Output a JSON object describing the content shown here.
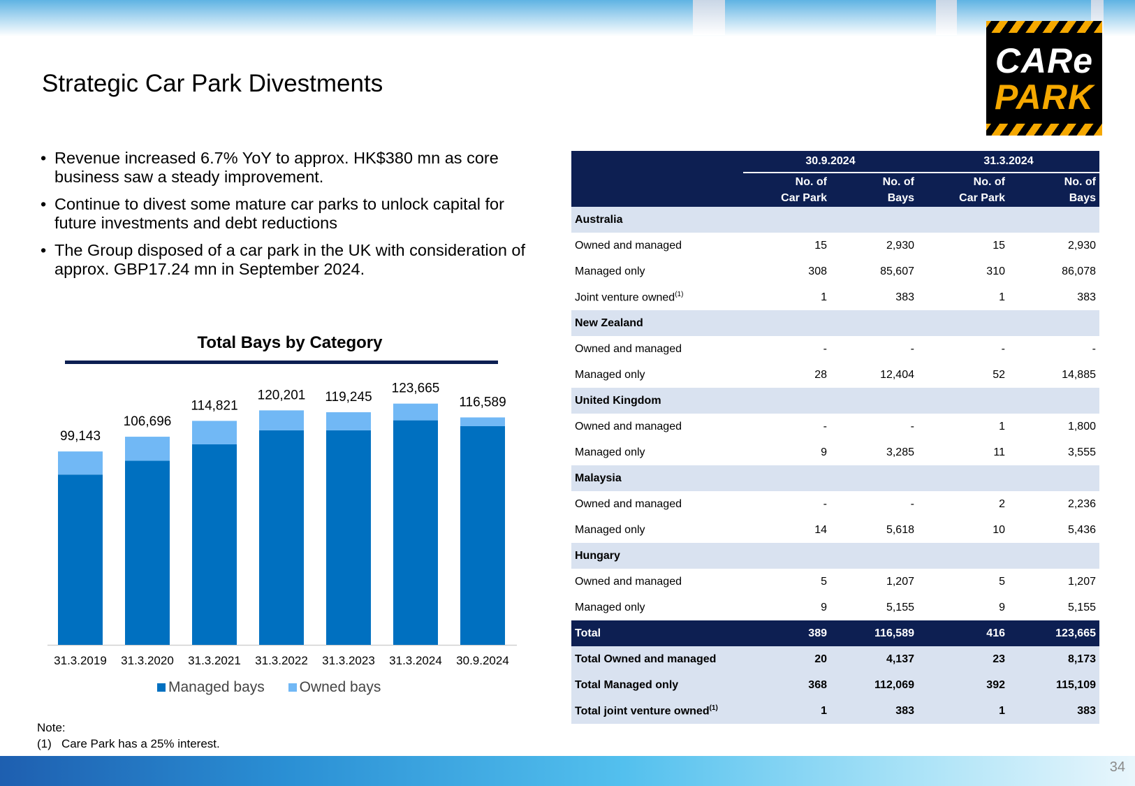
{
  "page": {
    "title": "Strategic Car Park Divestments",
    "page_number": "34",
    "logo": {
      "line1": "CARe",
      "line2": "PARK"
    },
    "bullets": [
      "Revenue increased 6.7% YoY to approx. HK$380 mn as core business saw a steady improvement.",
      "Continue to divest some mature car parks to unlock capital for future investments and debt reductions",
      "The Group disposed of a car park in the UK with consideration of approx. GBP17.24 mn in September 2024."
    ],
    "note": {
      "heading": "Note:",
      "text": "(1)   Care Park has a 25% interest."
    }
  },
  "chart_data": {
    "type": "bar",
    "stacked": true,
    "title": "Total Bays by Category",
    "categories": [
      "31.3.2019",
      "31.3.2020",
      "31.3.2021",
      "31.3.2022",
      "31.3.2023",
      "31.3.2024",
      "30.9.2024"
    ],
    "series": [
      {
        "name": "Managed bays",
        "color": "#0070c0",
        "values": [
          87300,
          94400,
          102800,
          110000,
          110000,
          115100,
          112100
        ]
      },
      {
        "name": "Owned bays",
        "color": "#71b8f5",
        "values": [
          11843,
          12296,
          12021,
          10201,
          9245,
          8565,
          4489
        ]
      }
    ],
    "totals": [
      "99,143",
      "106,696",
      "114,821",
      "120,201",
      "119,245",
      "123,665",
      "116,589"
    ],
    "ylim": [
      0,
      130000
    ],
    "legend": "bottom",
    "grid": false
  },
  "table": {
    "periods": [
      "30.9.2024",
      "31.3.2024"
    ],
    "columns": [
      {
        "line1": "No. of",
        "line2": "Car Park"
      },
      {
        "line1": "No. of",
        "line2": "Bays"
      },
      {
        "line1": "No. of",
        "line2": "Car Park"
      },
      {
        "line1": "No. of",
        "line2": "Bays"
      }
    ],
    "rows": [
      {
        "type": "region",
        "label": "Australia"
      },
      {
        "type": "data",
        "label": "Owned and managed",
        "values": [
          "15",
          "2,930",
          "15",
          "2,930"
        ]
      },
      {
        "type": "data",
        "label": "Managed only",
        "values": [
          "308",
          "85,607",
          "310",
          "86,078"
        ]
      },
      {
        "type": "data",
        "label": "Joint venture owned",
        "sup": "(1)",
        "values": [
          "1",
          "383",
          "1",
          "383"
        ]
      },
      {
        "type": "region",
        "label": "New Zealand"
      },
      {
        "type": "data",
        "label": "Owned and managed",
        "values": [
          "-",
          "-",
          "-",
          "-"
        ]
      },
      {
        "type": "data",
        "label": "Managed only",
        "values": [
          "28",
          "12,404",
          "52",
          "14,885"
        ]
      },
      {
        "type": "region",
        "label": "United Kingdom"
      },
      {
        "type": "data",
        "label": "Owned and managed",
        "values": [
          "-",
          "-",
          "1",
          "1,800"
        ]
      },
      {
        "type": "data",
        "label": "Managed only",
        "values": [
          "9",
          "3,285",
          "11",
          "3,555"
        ]
      },
      {
        "type": "region",
        "label": "Malaysia"
      },
      {
        "type": "data",
        "label": "Owned and managed",
        "values": [
          "-",
          "-",
          "2",
          "2,236"
        ]
      },
      {
        "type": "data",
        "label": "Managed only",
        "values": [
          "14",
          "5,618",
          "10",
          "5,436"
        ]
      },
      {
        "type": "region",
        "label": "Hungary"
      },
      {
        "type": "data",
        "label": "Owned and managed",
        "values": [
          "5",
          "1,207",
          "5",
          "1,207"
        ]
      },
      {
        "type": "data",
        "label": "Managed only",
        "values": [
          "9",
          "5,155",
          "9",
          "5,155"
        ]
      },
      {
        "type": "total",
        "label": "Total",
        "values": [
          "389",
          "116,589",
          "416",
          "123,665"
        ]
      },
      {
        "type": "sum",
        "label": "Total Owned and managed",
        "values": [
          "20",
          "4,137",
          "23",
          "8,173"
        ]
      },
      {
        "type": "sum",
        "label": "Total Managed only",
        "values": [
          "368",
          "112,069",
          "392",
          "115,109"
        ]
      },
      {
        "type": "sum",
        "label": "Total joint venture owned",
        "sup": "(1)",
        "values": [
          "1",
          "383",
          "1",
          "383"
        ]
      }
    ]
  }
}
